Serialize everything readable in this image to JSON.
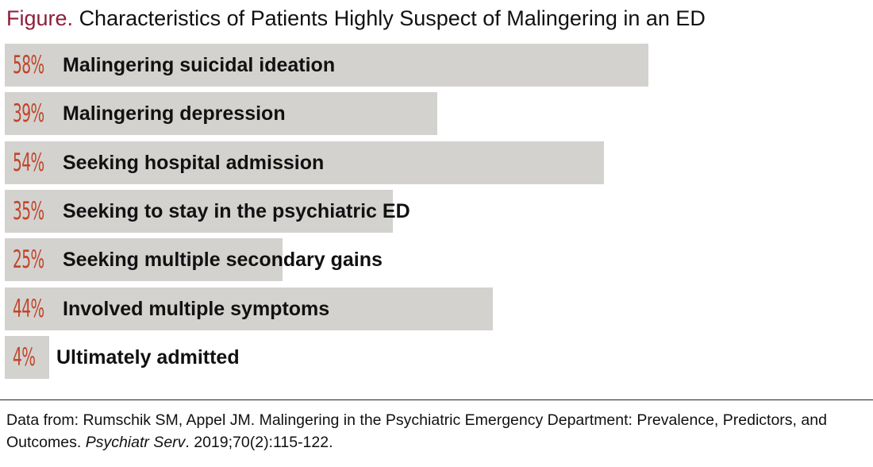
{
  "title": {
    "lead": "Figure.",
    "text": "Characteristics of Patients Highly Suspect of Malingering in an ED"
  },
  "chart_data": {
    "type": "bar",
    "orientation": "horizontal",
    "title": "Characteristics of Patients Highly Suspect of Malingering in an ED",
    "categories": [
      "Malingering suicidal ideation",
      "Malingering depression",
      "Seeking hospital admission",
      "Seeking to stay in the psychiatric ED",
      "Seeking multiple secondary gains",
      "Involved multiple symptoms",
      "Ultimately admitted"
    ],
    "values": [
      58,
      39,
      54,
      35,
      25,
      44,
      4
    ],
    "value_labels": [
      "58%",
      "39%",
      "54%",
      "35%",
      "25%",
      "44%",
      "4%"
    ],
    "unit": "%",
    "xlim": [
      0,
      100
    ],
    "bar_color": "#d3d2cf",
    "value_label_color": "#c2452a",
    "grid": false,
    "legend": "none"
  },
  "source": {
    "prefix": "Data from: Rumschik SM, Appel JM. Malingering in the Psychiatric Emergency Department: Prevalence, Predictors, and Outcomes. ",
    "journal": "Psychiatr Serv",
    "suffix": ". 2019;70(2):115-122."
  },
  "colors": {
    "title_lead": "#8e1f3a",
    "bar": "#d3d2cf",
    "value_label": "#c2452a",
    "text": "#111111"
  }
}
